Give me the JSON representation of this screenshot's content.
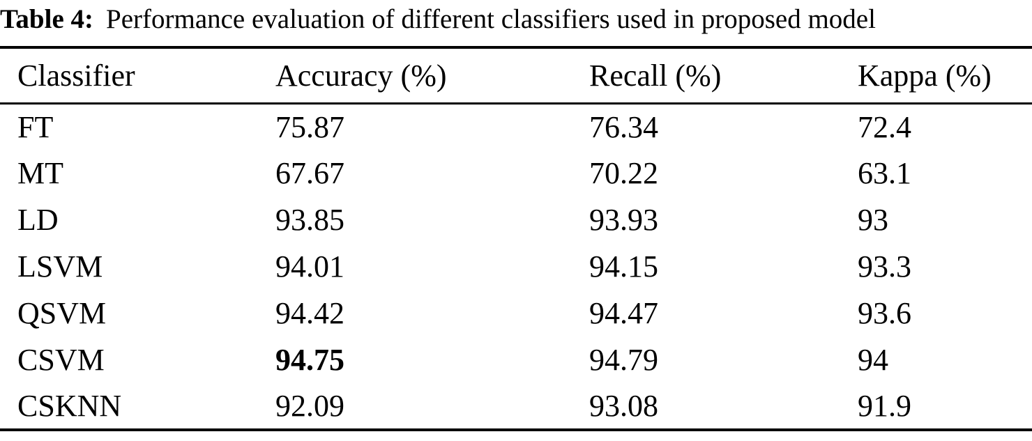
{
  "caption": {
    "label": "Table 4:",
    "text": "Performance evaluation of different classifiers used in proposed model"
  },
  "table": {
    "columns": [
      {
        "label": "Classifier"
      },
      {
        "label": "Accuracy (%)"
      },
      {
        "label": "Recall (%)"
      },
      {
        "label": "Kappa (%)"
      }
    ],
    "rows": [
      {
        "classifier": "FT",
        "accuracy": "75.87",
        "recall": "76.34",
        "kappa": "72.4",
        "accuracy_bold": false
      },
      {
        "classifier": "MT",
        "accuracy": "67.67",
        "recall": "70.22",
        "kappa": "63.1",
        "accuracy_bold": false
      },
      {
        "classifier": "LD",
        "accuracy": "93.85",
        "recall": "93.93",
        "kappa": "93",
        "accuracy_bold": false
      },
      {
        "classifier": "LSVM",
        "accuracy": "94.01",
        "recall": "94.15",
        "kappa": "93.3",
        "accuracy_bold": false
      },
      {
        "classifier": "QSVM",
        "accuracy": "94.42",
        "recall": "94.47",
        "kappa": "93.6",
        "accuracy_bold": false
      },
      {
        "classifier": "CSVM",
        "accuracy": "94.75",
        "recall": "94.79",
        "kappa": "94",
        "accuracy_bold": true
      },
      {
        "classifier": "CSKNN",
        "accuracy": "92.09",
        "recall": "93.08",
        "kappa": "91.9",
        "accuracy_bold": false
      }
    ]
  },
  "colors": {
    "background": "#ffffff",
    "text": "#000000",
    "rule": "#000000"
  }
}
